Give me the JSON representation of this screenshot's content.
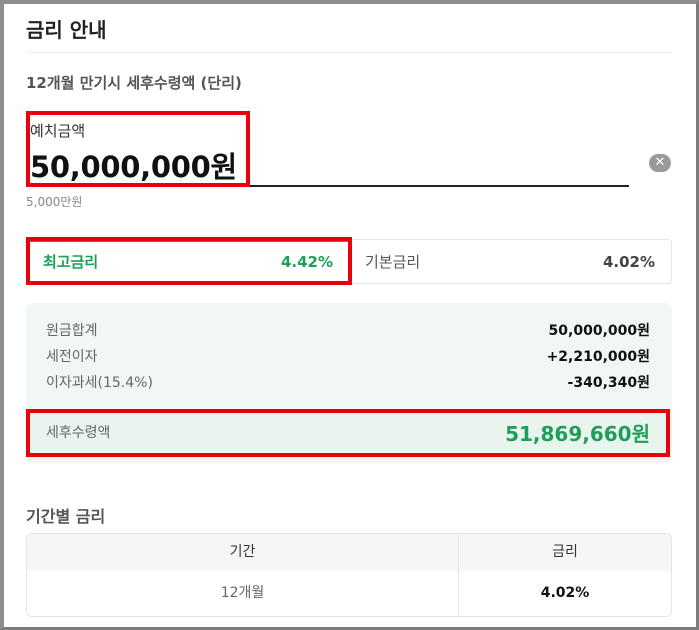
{
  "header": {
    "title": "금리 안내"
  },
  "section": {
    "subtitle": "12개월 만기시 세후수령액 (단리)"
  },
  "deposit": {
    "label": "예치금액",
    "value": "50,000,000원",
    "hint": "5,000만원",
    "clear_icon": "clear-circle-x-icon"
  },
  "rate_tabs": [
    {
      "label": "최고금리",
      "rate": "4.42%",
      "active": true
    },
    {
      "label": "기본금리",
      "rate": "4.02%",
      "active": false
    }
  ],
  "summary": {
    "rows": [
      {
        "label": "원금합계",
        "value": "50,000,000원"
      },
      {
        "label": "세전이자",
        "value": "+2,210,000원"
      },
      {
        "label": "이자과세(15.4%)",
        "value": "-340,340원"
      }
    ],
    "after_tax": {
      "label": "세후수령액",
      "value": "51,869,660원"
    }
  },
  "period_rates": {
    "title": "기간별 금리",
    "columns": [
      "기간",
      "금리"
    ],
    "rows": [
      {
        "period": "12개월",
        "rate": "4.02%"
      }
    ]
  },
  "colors": {
    "accent_green": "#1e9e58",
    "highlight_red": "#e8000b",
    "summary_bg": "#f1f7f3"
  }
}
